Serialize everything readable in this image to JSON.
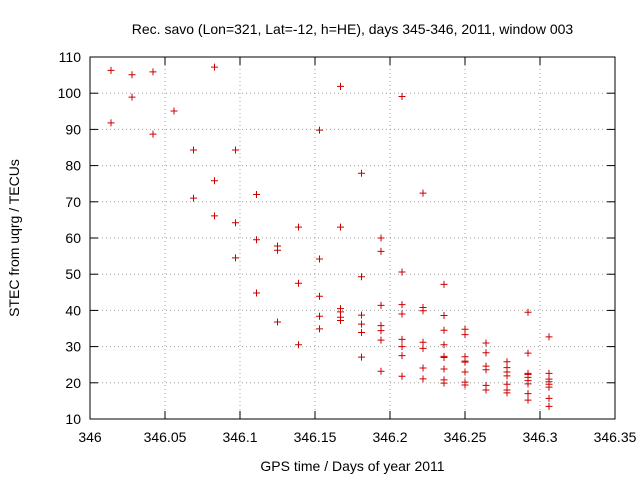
{
  "chart_data": {
    "type": "scatter",
    "title": "Rec. savo (Lon=321, Lat=-12, h=HE), days 345-346, 2011, window 003",
    "xlabel": "GPS time / Days of year 2011",
    "ylabel": "STEC from uqrg / TECUs",
    "xlim": [
      346,
      346.35
    ],
    "ylim": [
      10,
      110
    ],
    "xticks": [
      346,
      346.05,
      346.1,
      346.15,
      346.2,
      346.25,
      346.3,
      346.35
    ],
    "xtick_labels": [
      "346",
      "346.05",
      "346.1",
      "346.15",
      "346.2",
      "346.25",
      "346.3",
      "346.35"
    ],
    "yticks": [
      10,
      20,
      30,
      40,
      50,
      60,
      70,
      80,
      90,
      100,
      110
    ],
    "ytick_labels": [
      "10",
      "20",
      "30",
      "40",
      "50",
      "60",
      "70",
      "80",
      "90",
      "100",
      "110"
    ],
    "grid": true,
    "marker": "+",
    "color": "#cc0000",
    "points": [
      [
        346.014,
        106.3
      ],
      [
        346.014,
        91.8
      ],
      [
        346.028,
        105.1
      ],
      [
        346.028,
        98.9
      ],
      [
        346.042,
        105.9
      ],
      [
        346.042,
        88.7
      ],
      [
        346.056,
        95.1
      ],
      [
        346.069,
        84.3
      ],
      [
        346.069,
        71.0
      ],
      [
        346.083,
        107.2
      ],
      [
        346.083,
        75.8
      ],
      [
        346.083,
        66.1
      ],
      [
        346.097,
        84.3
      ],
      [
        346.097,
        64.2
      ],
      [
        346.097,
        54.5
      ],
      [
        346.111,
        72.0
      ],
      [
        346.111,
        59.5
      ],
      [
        346.111,
        44.8
      ],
      [
        346.125,
        57.8
      ],
      [
        346.125,
        56.6
      ],
      [
        346.125,
        36.8
      ],
      [
        346.139,
        63.0
      ],
      [
        346.139,
        47.5
      ],
      [
        346.139,
        30.5
      ],
      [
        346.153,
        89.8
      ],
      [
        346.153,
        54.2
      ],
      [
        346.153,
        43.9
      ],
      [
        346.153,
        38.4
      ],
      [
        346.153,
        34.9
      ],
      [
        346.167,
        101.9
      ],
      [
        346.167,
        63.0
      ],
      [
        346.167,
        40.5
      ],
      [
        346.167,
        39.6
      ],
      [
        346.167,
        38.1
      ],
      [
        346.167,
        37.2
      ],
      [
        346.181,
        77.9
      ],
      [
        346.181,
        49.3
      ],
      [
        346.181,
        38.7
      ],
      [
        346.181,
        36.2
      ],
      [
        346.181,
        33.9
      ],
      [
        346.181,
        27.1
      ],
      [
        346.194,
        60.0
      ],
      [
        346.194,
        56.3
      ],
      [
        346.194,
        41.4
      ],
      [
        346.194,
        35.8
      ],
      [
        346.194,
        34.4
      ],
      [
        346.194,
        31.8
      ],
      [
        346.194,
        23.2
      ],
      [
        346.208,
        99.1
      ],
      [
        346.208,
        50.6
      ],
      [
        346.208,
        41.6
      ],
      [
        346.208,
        39.0
      ],
      [
        346.208,
        32.0
      ],
      [
        346.208,
        30.0
      ],
      [
        346.208,
        27.5
      ],
      [
        346.208,
        21.8
      ],
      [
        346.222,
        72.4
      ],
      [
        346.222,
        40.8
      ],
      [
        346.222,
        39.9
      ],
      [
        346.222,
        31.2
      ],
      [
        346.222,
        29.5
      ],
      [
        346.222,
        24.1
      ],
      [
        346.222,
        21.1
      ],
      [
        346.236,
        47.2
      ],
      [
        346.236,
        38.6
      ],
      [
        346.236,
        34.5
      ],
      [
        346.236,
        30.5
      ],
      [
        346.236,
        27.3
      ],
      [
        346.236,
        27.0
      ],
      [
        346.236,
        23.8
      ],
      [
        346.236,
        20.8
      ],
      [
        346.236,
        19.9
      ],
      [
        346.25,
        34.8
      ],
      [
        346.25,
        33.3
      ],
      [
        346.25,
        27.2
      ],
      [
        346.25,
        26.0
      ],
      [
        346.25,
        25.7
      ],
      [
        346.25,
        23.0
      ],
      [
        346.25,
        20.2
      ],
      [
        346.25,
        19.4
      ],
      [
        346.264,
        31.0
      ],
      [
        346.264,
        28.3
      ],
      [
        346.264,
        24.6
      ],
      [
        346.264,
        23.6
      ],
      [
        346.264,
        19.3
      ],
      [
        346.264,
        18.0
      ],
      [
        346.278,
        25.8
      ],
      [
        346.278,
        24.2
      ],
      [
        346.278,
        23.0
      ],
      [
        346.278,
        21.9
      ],
      [
        346.278,
        19.6
      ],
      [
        346.278,
        18.0
      ],
      [
        346.278,
        17.2
      ],
      [
        346.292,
        39.5
      ],
      [
        346.292,
        28.2
      ],
      [
        346.292,
        22.6
      ],
      [
        346.292,
        22.3
      ],
      [
        346.292,
        21.5
      ],
      [
        346.292,
        20.6
      ],
      [
        346.292,
        19.7
      ],
      [
        346.292,
        17.0
      ],
      [
        346.292,
        15.2
      ],
      [
        346.306,
        32.7
      ],
      [
        346.306,
        22.6
      ],
      [
        346.306,
        21.0
      ],
      [
        346.306,
        20.3
      ],
      [
        346.306,
        19.6
      ],
      [
        346.306,
        18.8
      ],
      [
        346.306,
        15.7
      ],
      [
        346.306,
        13.5
      ]
    ]
  }
}
